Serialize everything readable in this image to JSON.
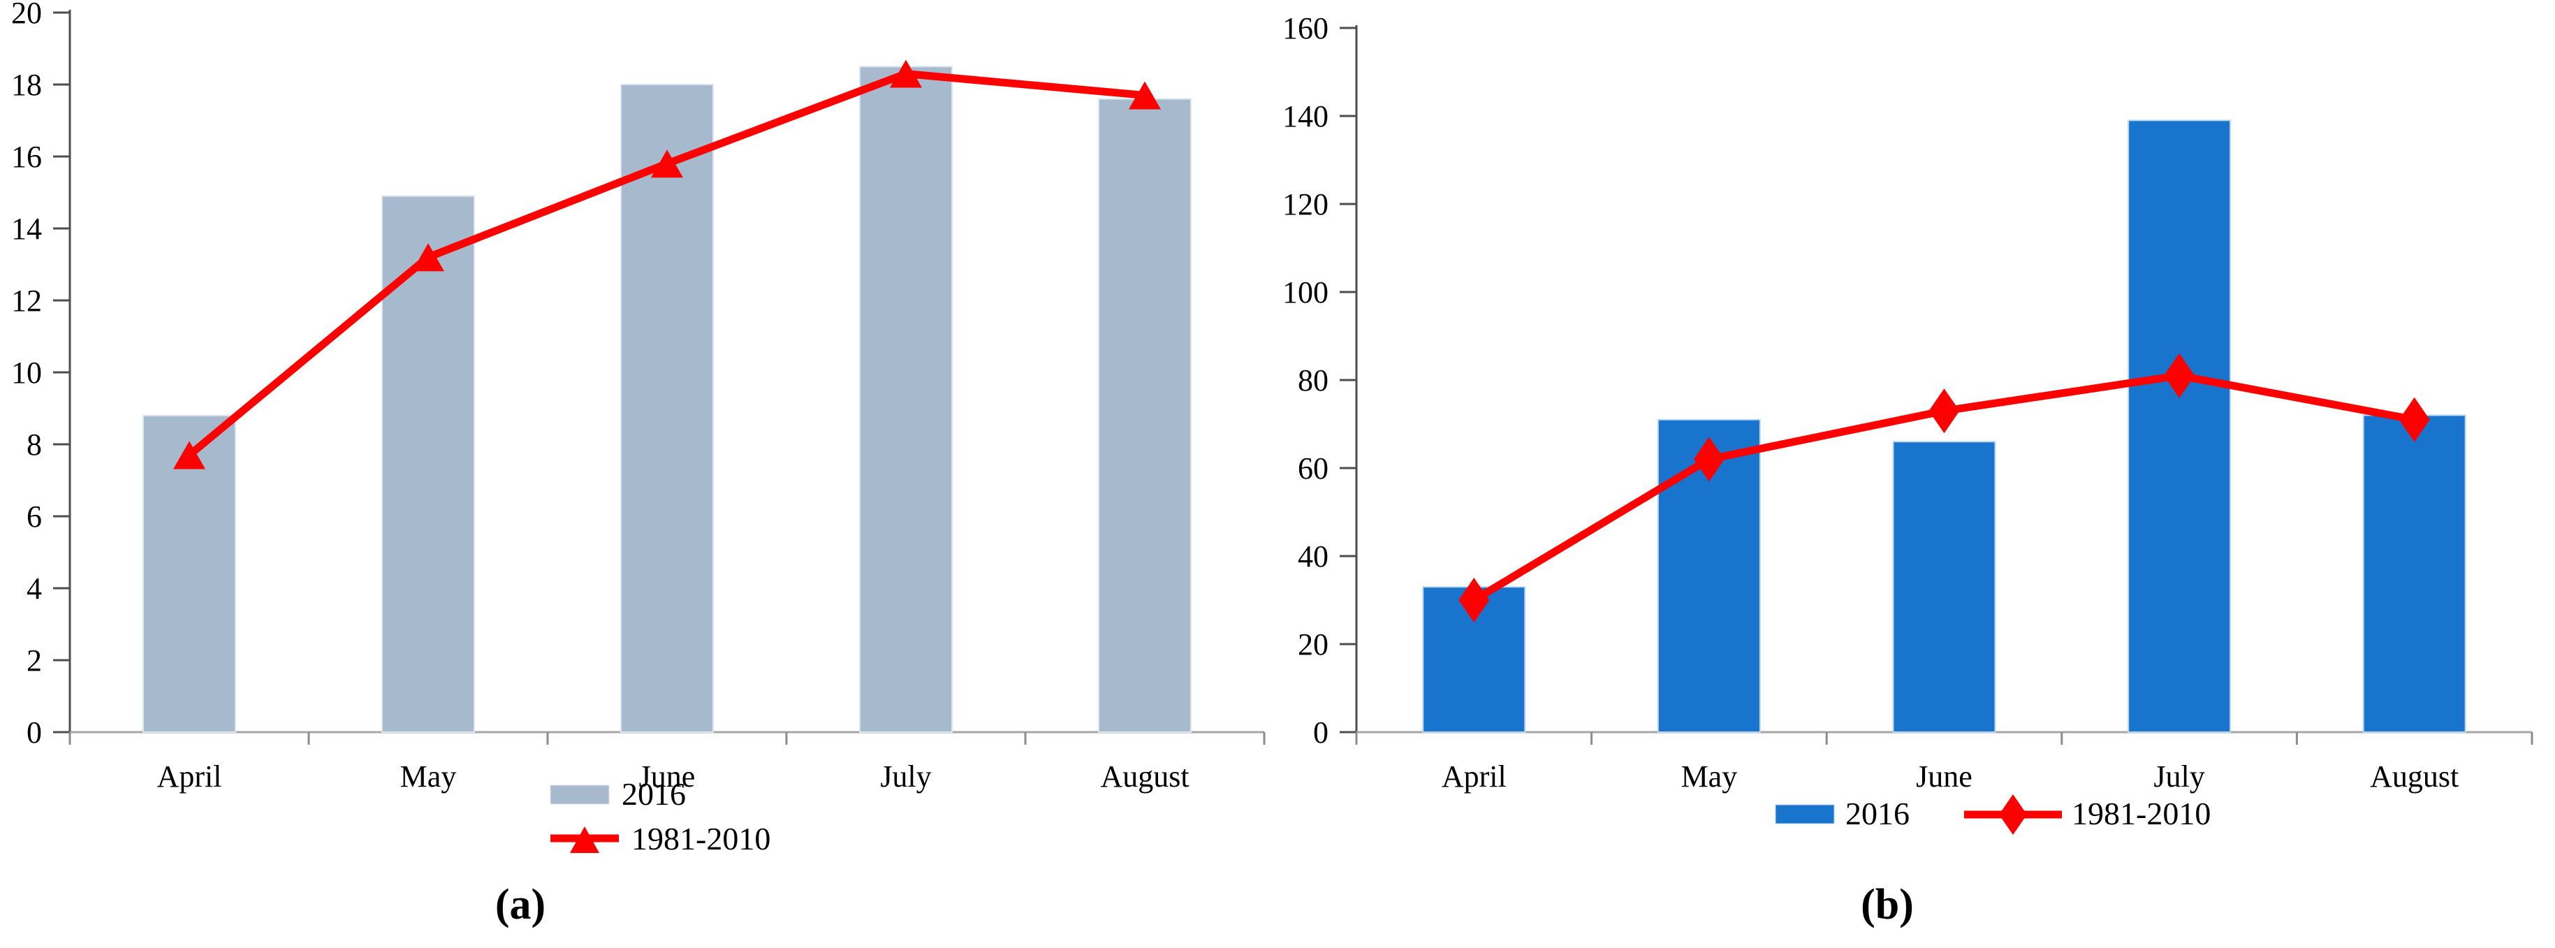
{
  "figure": {
    "panel_count": 2,
    "background_color": "#ffffff"
  },
  "chart_data": [
    {
      "id": "a",
      "type": "bar",
      "subtype": "bar-with-line-overlay",
      "caption": "(a)",
      "categories": [
        "April",
        "May",
        "June",
        "July",
        "August"
      ],
      "series": [
        {
          "name": "2016",
          "type": "bar",
          "color": "#a7b9cc",
          "edge_color": "#dde6ef",
          "values": [
            8.8,
            14.9,
            18.0,
            18.5,
            17.6
          ]
        },
        {
          "name": "1981-2010",
          "type": "line",
          "color": "#ff0000",
          "marker": "triangle",
          "values": [
            7.7,
            13.2,
            15.8,
            18.3,
            17.7
          ]
        }
      ],
      "xlabel": "",
      "ylabel": "",
      "ylim": [
        0,
        20
      ],
      "ytick_step": 2,
      "grid": false,
      "legend_position": "below-axis-stacked",
      "legend": [
        "2016",
        "1981-2010"
      ]
    },
    {
      "id": "b",
      "type": "bar",
      "subtype": "bar-with-line-overlay",
      "caption": "(b)",
      "categories": [
        "April",
        "May",
        "June",
        "July",
        "August"
      ],
      "series": [
        {
          "name": "2016",
          "type": "bar",
          "color": "#1874cd",
          "edge_color": "#bdd7ee",
          "values": [
            33,
            71,
            66,
            139,
            72
          ]
        },
        {
          "name": "1981-2010",
          "type": "line",
          "color": "#ff0000",
          "marker": "diamond",
          "values": [
            30,
            62,
            73,
            81,
            71
          ]
        }
      ],
      "xlabel": "",
      "ylabel": "",
      "ylim": [
        0,
        160
      ],
      "ytick_step": 20,
      "grid": false,
      "legend_position": "below-axis-row",
      "legend": [
        "2016",
        "1981-2010"
      ]
    }
  ],
  "styles": {
    "axis_line_color": "#4d4d4d",
    "baseline_color": "#a6a6a6",
    "xtick_color": "#8c8c8c",
    "line_color": "#ff0000",
    "bar_color_a": "#a7b9cc",
    "bar_color_b": "#1874cd",
    "text_color": "#000000"
  }
}
